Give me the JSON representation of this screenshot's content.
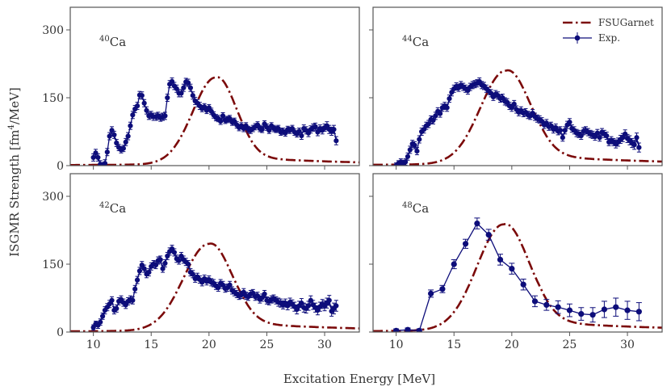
{
  "figure": {
    "xlabel": "Excitation Energy [MeV]",
    "ylabel": "ISGMR Strength [fm",
    "ylabel_sup": "4",
    "ylabel_end": "/MeV]"
  },
  "legend": {
    "theory": "FSUGarnet",
    "exp": "Exp."
  },
  "colors": {
    "theory": "#7b0a0a",
    "exp": "#0d0d7a",
    "frame": "#555555"
  },
  "chart_data": [
    {
      "type": "line",
      "panel": "top-left",
      "label_mass": "40",
      "label_elem": "Ca",
      "xlim": [
        8,
        33
      ],
      "ylim": [
        0,
        350
      ],
      "x_ticks": [
        "10",
        "15",
        "20",
        "25",
        "30"
      ],
      "y_ticks": [
        "0",
        "150",
        "300"
      ],
      "x_tick_values": [
        10,
        15,
        20,
        25,
        30
      ],
      "y_tick_values": [
        0,
        150,
        300
      ],
      "show_x_labels": false,
      "show_y_labels": true,
      "theory": {
        "name": "FSUGarnet",
        "peak": 20.6,
        "height": 195,
        "wl": 2.0,
        "wr": 1.7,
        "tail_amp": 10,
        "tail_decay": 0.09
      },
      "exp": {
        "name": "Exp.",
        "x": [
          10.0,
          10.2,
          10.4,
          10.6,
          10.8,
          11.0,
          11.2,
          11.4,
          11.6,
          11.8,
          12.0,
          12.2,
          12.4,
          12.6,
          12.8,
          13.0,
          13.2,
          13.4,
          13.6,
          13.8,
          14.0,
          14.2,
          14.4,
          14.6,
          14.8,
          15.0,
          15.2,
          15.4,
          15.6,
          15.8,
          16.0,
          16.2,
          16.4,
          16.6,
          16.8,
          17.0,
          17.2,
          17.4,
          17.6,
          17.8,
          18.0,
          18.2,
          18.4,
          18.6,
          18.8,
          19.0,
          19.2,
          19.4,
          19.6,
          19.8,
          20.0,
          20.2,
          20.4,
          20.6,
          20.8,
          21.0,
          21.2,
          21.4,
          21.6,
          21.8,
          22.0,
          22.2,
          22.4,
          22.6,
          22.8,
          23.0,
          23.2,
          23.4,
          23.6,
          23.8,
          24.0,
          24.2,
          24.4,
          24.6,
          24.8,
          25.0,
          25.2,
          25.4,
          25.6,
          25.8,
          26.0,
          26.2,
          26.4,
          26.6,
          26.8,
          27.0,
          27.2,
          27.4,
          27.6,
          27.8,
          28.0,
          28.2,
          28.4,
          28.6,
          28.8,
          29.0,
          29.2,
          29.4,
          29.6,
          29.8,
          30.0,
          30.2,
          30.4,
          30.6,
          30.8,
          31.0
        ],
        "y": [
          18,
          28,
          18,
          3,
          0,
          5,
          30,
          65,
          78,
          68,
          50,
          40,
          35,
          38,
          52,
          65,
          88,
          112,
          125,
          132,
          156,
          155,
          138,
          122,
          110,
          112,
          108,
          108,
          110,
          106,
          108,
          110,
          150,
          180,
          186,
          176,
          170,
          160,
          160,
          172,
          185,
          183,
          172,
          155,
          143,
          138,
          132,
          126,
          130,
          122,
          128,
          120,
          112,
          106,
          104,
          98,
          110,
          100,
          102,
          104,
          96,
          98,
          90,
          84,
          88,
          82,
          88,
          80,
          78,
          82,
          86,
          90,
          82,
          80,
          92,
          85,
          78,
          88,
          82,
          80,
          82,
          74,
          76,
          72,
          80,
          78,
          82,
          74,
          70,
          76,
          66,
          82,
          78,
          72,
          80,
          84,
          86,
          74,
          82,
          78,
          84,
          88,
          80,
          76,
          80,
          55
        ],
        "err": [
          8,
          8,
          8,
          8,
          7,
          8,
          8,
          8,
          8,
          8,
          8,
          7,
          7,
          7,
          8,
          8,
          8,
          8,
          8,
          8,
          8,
          8,
          8,
          8,
          8,
          8,
          8,
          8,
          8,
          8,
          8,
          8,
          8,
          8,
          8,
          8,
          8,
          8,
          8,
          8,
          8,
          8,
          8,
          8,
          8,
          8,
          8,
          7,
          7,
          7,
          7,
          7,
          7,
          7,
          7,
          7,
          7,
          7,
          7,
          7,
          7,
          7,
          7,
          7,
          7,
          7,
          7,
          7,
          7,
          7,
          7,
          7,
          7,
          7,
          7,
          7,
          7,
          7,
          7,
          7,
          7,
          7,
          7,
          7,
          7,
          7,
          7,
          7,
          7,
          7,
          8,
          8,
          8,
          8,
          8,
          8,
          8,
          8,
          8,
          8,
          8,
          9,
          9,
          9,
          9,
          9
        ]
      }
    },
    {
      "type": "line",
      "panel": "top-right",
      "label_mass": "44",
      "label_elem": "Ca",
      "xlim": [
        8,
        33
      ],
      "ylim": [
        0,
        350
      ],
      "x_ticks": [
        "10",
        "15",
        "20",
        "25",
        "30"
      ],
      "y_ticks": [
        "0",
        "150",
        "300"
      ],
      "x_tick_values": [
        10,
        15,
        20,
        25,
        30
      ],
      "y_tick_values": [
        0,
        150,
        300
      ],
      "show_x_labels": false,
      "show_y_labels": false,
      "show_legend": true,
      "theory": {
        "name": "FSUGarnet",
        "peak": 19.5,
        "height": 210,
        "wl": 2.2,
        "wr": 2.0,
        "tail_amp": 12,
        "tail_decay": 0.08
      },
      "exp": {
        "name": "Exp.",
        "x": [
          10.0,
          10.2,
          10.4,
          10.6,
          10.8,
          11.0,
          11.2,
          11.4,
          11.6,
          11.8,
          12.0,
          12.2,
          12.4,
          12.6,
          12.8,
          13.0,
          13.2,
          13.4,
          13.6,
          13.8,
          14.0,
          14.2,
          14.4,
          14.6,
          14.8,
          15.0,
          15.2,
          15.4,
          15.6,
          15.8,
          16.0,
          16.2,
          16.4,
          16.6,
          16.8,
          17.0,
          17.2,
          17.4,
          17.6,
          17.8,
          18.0,
          18.2,
          18.4,
          18.6,
          18.8,
          19.0,
          19.2,
          19.4,
          19.6,
          19.8,
          20.0,
          20.2,
          20.4,
          20.6,
          20.8,
          21.0,
          21.2,
          21.4,
          21.6,
          21.8,
          22.0,
          22.2,
          22.4,
          22.6,
          22.8,
          23.0,
          23.2,
          23.4,
          23.6,
          23.8,
          24.0,
          24.2,
          24.4,
          24.6,
          24.8,
          25.0,
          25.2,
          25.4,
          25.6,
          25.8,
          26.0,
          26.2,
          26.4,
          26.6,
          26.8,
          27.0,
          27.2,
          27.4,
          27.6,
          27.8,
          28.0,
          28.2,
          28.4,
          28.6,
          28.8,
          29.0,
          29.2,
          29.4,
          29.6,
          29.8,
          30.0,
          30.2,
          30.4,
          30.6,
          30.8,
          31.0
        ],
        "y": [
          0,
          5,
          8,
          5,
          8,
          20,
          35,
          48,
          45,
          32,
          58,
          75,
          80,
          88,
          92,
          102,
          100,
          110,
          120,
          115,
          128,
          132,
          128,
          148,
          162,
          170,
          175,
          172,
          178,
          174,
          170,
          166,
          174,
          178,
          180,
          182,
          186,
          178,
          176,
          170,
          165,
          160,
          152,
          158,
          155,
          148,
          150,
          142,
          140,
          132,
          128,
          136,
          124,
          118,
          122,
          116,
          118,
          112,
          110,
          116,
          108,
          104,
          102,
          98,
          90,
          94,
          86,
          88,
          80,
          84,
          76,
          78,
          62,
          78,
          90,
          96,
          82,
          78,
          72,
          70,
          66,
          76,
          78,
          74,
          70,
          68,
          64,
          72,
          62,
          74,
          70,
          66,
          52,
          56,
          52,
          48,
          52,
          58,
          62,
          70,
          60,
          56,
          50,
          46,
          62,
          40
        ],
        "err": [
          6,
          6,
          7,
          7,
          7,
          8,
          8,
          8,
          8,
          8,
          8,
          8,
          8,
          8,
          8,
          8,
          8,
          8,
          8,
          8,
          8,
          8,
          8,
          8,
          8,
          8,
          8,
          8,
          8,
          8,
          8,
          8,
          8,
          8,
          8,
          8,
          8,
          8,
          8,
          8,
          8,
          8,
          8,
          8,
          8,
          8,
          8,
          8,
          8,
          8,
          8,
          8,
          8,
          8,
          8,
          8,
          8,
          8,
          8,
          8,
          8,
          8,
          8,
          8,
          8,
          8,
          8,
          8,
          8,
          8,
          8,
          8,
          8,
          8,
          8,
          8,
          8,
          8,
          8,
          8,
          8,
          8,
          8,
          8,
          8,
          8,
          8,
          8,
          8,
          8,
          8,
          8,
          8,
          8,
          8,
          9,
          9,
          9,
          9,
          9,
          9,
          10,
          10,
          10,
          10,
          10
        ]
      }
    },
    {
      "type": "line",
      "panel": "bottom-left",
      "label_mass": "42",
      "label_elem": "Ca",
      "xlim": [
        8,
        33
      ],
      "ylim": [
        0,
        350
      ],
      "x_ticks": [
        "10",
        "15",
        "20",
        "25",
        "30"
      ],
      "y_ticks": [
        "0",
        "150",
        "300"
      ],
      "x_tick_values": [
        10,
        15,
        20,
        25,
        30
      ],
      "y_tick_values": [
        0,
        150,
        300
      ],
      "show_x_labels": true,
      "show_y_labels": true,
      "theory": {
        "name": "FSUGarnet",
        "peak": 20.0,
        "height": 195,
        "wl": 2.2,
        "wr": 1.9,
        "tail_amp": 11,
        "tail_decay": 0.085
      },
      "exp": {
        "name": "Exp.",
        "x": [
          10.0,
          10.2,
          10.4,
          10.6,
          10.8,
          11.0,
          11.2,
          11.4,
          11.6,
          11.8,
          12.0,
          12.2,
          12.4,
          12.6,
          12.8,
          13.0,
          13.2,
          13.4,
          13.6,
          13.8,
          14.0,
          14.2,
          14.4,
          14.6,
          14.8,
          15.0,
          15.2,
          15.4,
          15.6,
          15.8,
          16.0,
          16.2,
          16.4,
          16.6,
          16.8,
          17.0,
          17.2,
          17.4,
          17.6,
          17.8,
          18.0,
          18.2,
          18.4,
          18.6,
          18.8,
          19.0,
          19.2,
          19.4,
          19.6,
          19.8,
          20.0,
          20.2,
          20.4,
          20.6,
          20.8,
          21.0,
          21.2,
          21.4,
          21.6,
          21.8,
          22.0,
          22.2,
          22.4,
          22.6,
          22.8,
          23.0,
          23.2,
          23.4,
          23.6,
          23.8,
          24.0,
          24.2,
          24.4,
          24.6,
          24.8,
          25.0,
          25.2,
          25.4,
          25.6,
          25.8,
          26.0,
          26.2,
          26.4,
          26.6,
          26.8,
          27.0,
          27.2,
          27.4,
          27.6,
          27.8,
          28.0,
          28.2,
          28.4,
          28.6,
          28.8,
          29.0,
          29.2,
          29.4,
          29.6,
          29.8,
          30.0,
          30.2,
          30.4,
          30.6,
          30.8,
          31.0
        ],
        "y": [
          10,
          18,
          15,
          22,
          35,
          48,
          55,
          62,
          70,
          48,
          52,
          68,
          72,
          65,
          60,
          68,
          72,
          70,
          95,
          115,
          135,
          148,
          140,
          128,
          132,
          145,
          150,
          148,
          158,
          160,
          140,
          152,
          168,
          178,
          184,
          176,
          162,
          158,
          168,
          160,
          155,
          150,
          132,
          128,
          118,
          122,
          116,
          110,
          118,
          112,
          116,
          110,
          108,
          102,
          98,
          108,
          104,
          96,
          98,
          104,
          92,
          88,
          84,
          80,
          82,
          88,
          80,
          78,
          84,
          86,
          78,
          80,
          72,
          76,
          84,
          70,
          68,
          72,
          74,
          70,
          66,
          64,
          60,
          64,
          58,
          66,
          62,
          56,
          50,
          58,
          64,
          54,
          52,
          58,
          70,
          60,
          54,
          48,
          56,
          62,
          58,
          64,
          70,
          46,
          52,
          58
        ],
        "err": [
          6,
          6,
          7,
          7,
          7,
          8,
          8,
          8,
          8,
          8,
          8,
          8,
          8,
          8,
          8,
          8,
          8,
          8,
          8,
          8,
          8,
          8,
          8,
          8,
          8,
          8,
          8,
          8,
          8,
          8,
          8,
          8,
          8,
          8,
          8,
          8,
          8,
          8,
          8,
          8,
          8,
          8,
          8,
          8,
          8,
          8,
          8,
          8,
          8,
          8,
          8,
          8,
          8,
          8,
          8,
          8,
          8,
          8,
          8,
          8,
          8,
          8,
          8,
          8,
          8,
          8,
          8,
          8,
          8,
          8,
          8,
          8,
          8,
          8,
          8,
          8,
          8,
          8,
          8,
          8,
          9,
          9,
          9,
          9,
          9,
          9,
          9,
          10,
          10,
          10,
          10,
          10,
          10,
          10,
          10,
          10,
          10,
          10,
          10,
          10,
          11,
          11,
          11,
          11,
          12,
          12
        ]
      }
    },
    {
      "type": "line",
      "panel": "bottom-right",
      "label_mass": "48",
      "label_elem": "Ca",
      "xlim": [
        8,
        33
      ],
      "ylim": [
        0,
        350
      ],
      "x_ticks": [
        "10",
        "15",
        "20",
        "25",
        "30"
      ],
      "y_ticks": [
        "0",
        "150",
        "300"
      ],
      "x_tick_values": [
        10,
        15,
        20,
        25,
        30
      ],
      "y_tick_values": [
        0,
        150,
        300
      ],
      "show_x_labels": true,
      "show_y_labels": false,
      "theory": {
        "name": "FSUGarnet",
        "peak": 19.3,
        "height": 238,
        "wl": 2.3,
        "wr": 2.1,
        "tail_amp": 13,
        "tail_decay": 0.08
      },
      "exp": {
        "name": "Exp.",
        "x": [
          10,
          11,
          12,
          13,
          14,
          15,
          16,
          17,
          18,
          19,
          20,
          21,
          22,
          23,
          24,
          25,
          26,
          27,
          28,
          29,
          30,
          31
        ],
        "y": [
          3,
          5,
          3,
          85,
          95,
          150,
          195,
          240,
          215,
          160,
          140,
          105,
          68,
          60,
          55,
          48,
          40,
          38,
          50,
          55,
          48,
          45
        ],
        "err": [
          4,
          4,
          4,
          8,
          8,
          10,
          10,
          12,
          12,
          12,
          12,
          12,
          12,
          12,
          14,
          14,
          14,
          16,
          18,
          20,
          20,
          20
        ]
      }
    }
  ]
}
